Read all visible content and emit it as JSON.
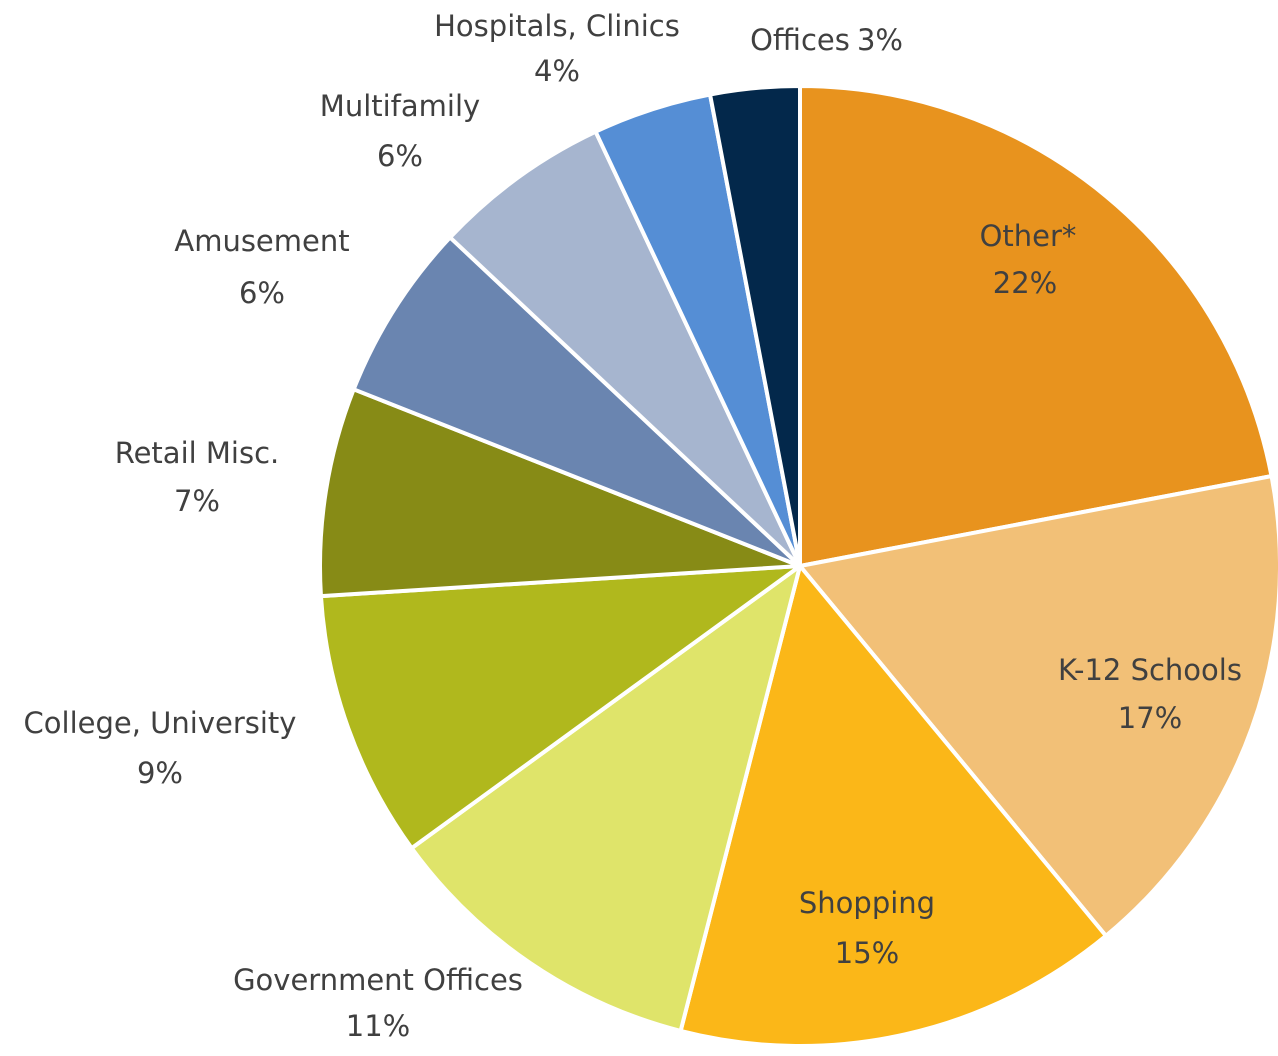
{
  "chart_data": {
    "type": "pie",
    "categories": [
      "Other*",
      "K-12 Schools",
      "Shopping",
      "Government Offices",
      "College, University",
      "Retail Misc.",
      "Amusement",
      "Multifamily",
      "Hospitals, Clinics",
      "Offices"
    ],
    "values": [
      22,
      17,
      15,
      11,
      9,
      7,
      6,
      6,
      4,
      3
    ],
    "value_labels": [
      "22%",
      "17%",
      "15%",
      "11%",
      "9%",
      "7%",
      "6%",
      "6%",
      "4%",
      "3%"
    ],
    "colors": [
      "#e8931e",
      "#f2c077",
      "#fbb718",
      "#dfe46a",
      "#b0b81d",
      "#878b16",
      "#6a85b0",
      "#a6b5cf",
      "#558ed5",
      "#03284b"
    ]
  }
}
